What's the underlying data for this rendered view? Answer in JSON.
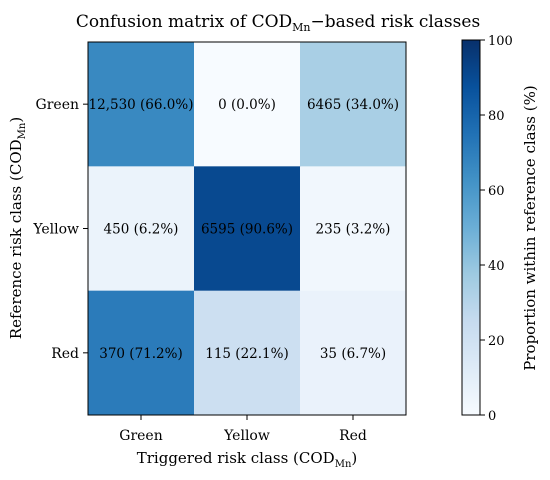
{
  "chart_data": {
    "type": "heatmap",
    "title": {
      "main": "Confusion matrix of COD",
      "sub": "Mn",
      "tail": "−based risk classes"
    },
    "xlabel": {
      "main": "Triggered risk class (COD",
      "sub": "Mn",
      "tail": ")"
    },
    "ylabel": {
      "main": "Reference risk class (COD",
      "sub": "Mn",
      "tail": ")"
    },
    "x_categories": [
      "Green",
      "Yellow",
      "Red"
    ],
    "y_categories": [
      "Green",
      "Yellow",
      "Red"
    ],
    "counts": [
      [
        12530,
        0,
        6465
      ],
      [
        450,
        6595,
        235
      ],
      [
        370,
        115,
        35
      ]
    ],
    "percent": [
      [
        66.0,
        0.0,
        34.0
      ],
      [
        6.2,
        90.6,
        3.2
      ],
      [
        71.2,
        22.1,
        6.7
      ]
    ],
    "cell_labels": [
      [
        "12,530 (66.0%)",
        "0 (0.0%)",
        "6465 (34.0%)"
      ],
      [
        "450 (6.2%)",
        "6595 (90.6%)",
        "235 (3.2%)"
      ],
      [
        "370 (71.2%)",
        "115 (22.1%)",
        "35 (6.7%)"
      ]
    ],
    "colorbar": {
      "label": "Proportion within reference class (%)",
      "range": [
        0,
        100
      ],
      "ticks": [
        "0",
        "20",
        "40",
        "60",
        "80",
        "100"
      ],
      "colormap": "Blues"
    }
  }
}
